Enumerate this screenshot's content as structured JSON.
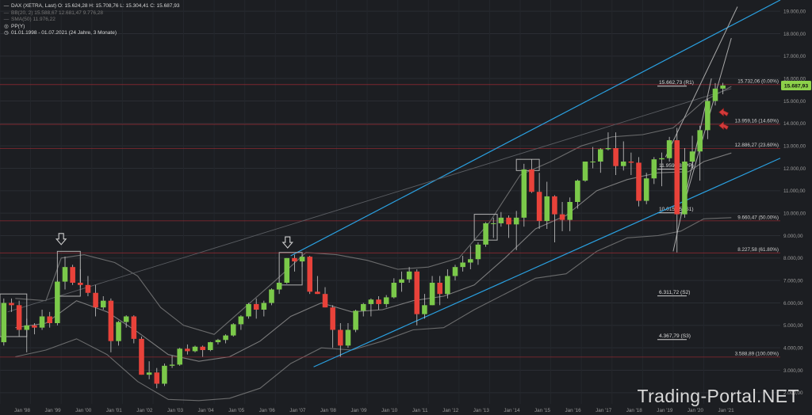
{
  "legend": {
    "ohlc": "DAX (XETRA, Last)  O: 15.624,28  H: 15.708,76  L: 15.304,41  C: 15.687,93",
    "bb": "BB(20, 2)  15.588,67  12.681,47  9.776,28",
    "sma": "SMA(50)  11.976,22",
    "pp": "PP(Y)",
    "range": "01.01.1998 - 01.07.2021  (24 Jahre, 3 Monate)"
  },
  "watermark": "Trading-Portal.NET",
  "colors": {
    "background": "#1c1e22",
    "up": "#7bc94a",
    "down": "#e8423a",
    "channel": "#2aa0e0",
    "bollinger": "#8c8c8c",
    "fib_line": "#9a2b33",
    "price_tag": "#8dd14a"
  },
  "chart_data": {
    "type": "candlestick",
    "title": "DAX (XETRA, Last)",
    "timeframe": "quarterly",
    "ylim": [
      1500,
      19500
    ],
    "ytick_values": [
      2000,
      3000,
      4000,
      5000,
      6000,
      7000,
      8000,
      9000,
      10000,
      11000,
      12000,
      13000,
      14000,
      15000,
      16000,
      17000,
      18000,
      19000
    ],
    "ytick_labels": [
      "2.000,00",
      "3.000,00",
      "4.000,00",
      "5.000,00",
      "6.000,00",
      "7.000,00",
      "8.000,00",
      "9.000,00",
      "10.000,00",
      "11.000,00",
      "12.000,00",
      "13.000,00",
      "14.000,00",
      "15.000,00",
      "16.000,00",
      "17.000,00",
      "18.000,00",
      "19.000,00"
    ],
    "xlim": [
      1998.0,
      2023.5
    ],
    "xtick_values": [
      1998,
      1999,
      2000,
      2001,
      2002,
      2003,
      2004,
      2005,
      2006,
      2007,
      2008,
      2009,
      2010,
      2011,
      2012,
      2013,
      2014,
      2015,
      2016,
      2017,
      2018,
      2019,
      2020,
      2021
    ],
    "xtick_labels": [
      "Jan '98",
      "Jan '99",
      "Jan '00",
      "Jan '01",
      "Jan '02",
      "Jan '03",
      "Jan '04",
      "Jan '05",
      "Jan '06",
      "Jan '07",
      "Jan '08",
      "Jan '09",
      "Jan '10",
      "Jan '11",
      "Jan '12",
      "Jan '13",
      "Jan '14",
      "Jan '15",
      "Jan '16",
      "Jan '17",
      "Jan '18",
      "Jan '19",
      "Jan '20",
      "Jan '21"
    ],
    "last_price": "15.687,93",
    "last_value": 15687.93,
    "candles": [
      {
        "t": 1998.125,
        "o": 4250,
        "h": 6200,
        "l": 4100,
        "c": 6000
      },
      {
        "t": 1998.375,
        "o": 6000,
        "h": 6200,
        "l": 5600,
        "c": 5900
      },
      {
        "t": 1998.625,
        "o": 5900,
        "h": 6100,
        "l": 4500,
        "c": 4800
      },
      {
        "t": 1998.875,
        "o": 4800,
        "h": 5300,
        "l": 3800,
        "c": 5000
      },
      {
        "t": 1999.125,
        "o": 5000,
        "h": 5100,
        "l": 4600,
        "c": 4900
      },
      {
        "t": 1999.375,
        "o": 4900,
        "h": 5700,
        "l": 4800,
        "c": 5400
      },
      {
        "t": 1999.625,
        "o": 5400,
        "h": 5600,
        "l": 4900,
        "c": 5100
      },
      {
        "t": 1999.875,
        "o": 5100,
        "h": 7000,
        "l": 5000,
        "c": 6950
      },
      {
        "t": 2000.125,
        "o": 6950,
        "h": 8065,
        "l": 6600,
        "c": 7600
      },
      {
        "t": 2000.375,
        "o": 7600,
        "h": 7700,
        "l": 6800,
        "c": 6900
      },
      {
        "t": 2000.625,
        "o": 6900,
        "h": 7500,
        "l": 6700,
        "c": 6800
      },
      {
        "t": 2000.875,
        "o": 6800,
        "h": 7200,
        "l": 6300,
        "c": 6450
      },
      {
        "t": 2001.125,
        "o": 6450,
        "h": 6800,
        "l": 5400,
        "c": 5800
      },
      {
        "t": 2001.375,
        "o": 5800,
        "h": 6300,
        "l": 5700,
        "c": 6100
      },
      {
        "t": 2001.625,
        "o": 6100,
        "h": 6200,
        "l": 3800,
        "c": 4300
      },
      {
        "t": 2001.875,
        "o": 4300,
        "h": 5200,
        "l": 4100,
        "c": 5150
      },
      {
        "t": 2002.125,
        "o": 5150,
        "h": 5450,
        "l": 4900,
        "c": 5400
      },
      {
        "t": 2002.375,
        "o": 5400,
        "h": 5450,
        "l": 4200,
        "c": 4400
      },
      {
        "t": 2002.625,
        "o": 4400,
        "h": 4500,
        "l": 2800,
        "c": 2800
      },
      {
        "t": 2002.875,
        "o": 2800,
        "h": 3400,
        "l": 2600,
        "c": 2900
      },
      {
        "t": 2003.125,
        "o": 2900,
        "h": 3100,
        "l": 2200,
        "c": 2400
      },
      {
        "t": 2003.375,
        "o": 2400,
        "h": 3300,
        "l": 2300,
        "c": 3200
      },
      {
        "t": 2003.625,
        "o": 3200,
        "h": 3650,
        "l": 3100,
        "c": 3250
      },
      {
        "t": 2003.875,
        "o": 3250,
        "h": 4000,
        "l": 3200,
        "c": 3960
      },
      {
        "t": 2004.125,
        "o": 3960,
        "h": 4150,
        "l": 3700,
        "c": 3850
      },
      {
        "t": 2004.375,
        "o": 3850,
        "h": 4100,
        "l": 3800,
        "c": 4050
      },
      {
        "t": 2004.625,
        "o": 4050,
        "h": 4100,
        "l": 3600,
        "c": 3900
      },
      {
        "t": 2004.875,
        "o": 3900,
        "h": 4270,
        "l": 3850,
        "c": 4250
      },
      {
        "t": 2005.125,
        "o": 4250,
        "h": 4400,
        "l": 4150,
        "c": 4350
      },
      {
        "t": 2005.375,
        "o": 4350,
        "h": 4600,
        "l": 4200,
        "c": 4550
      },
      {
        "t": 2005.625,
        "o": 4550,
        "h": 5100,
        "l": 4500,
        "c": 5050
      },
      {
        "t": 2005.875,
        "o": 5050,
        "h": 5450,
        "l": 4800,
        "c": 5400
      },
      {
        "t": 2006.125,
        "o": 5400,
        "h": 6000,
        "l": 5300,
        "c": 5950
      },
      {
        "t": 2006.375,
        "o": 5950,
        "h": 6200,
        "l": 5300,
        "c": 5700
      },
      {
        "t": 2006.625,
        "o": 5700,
        "h": 6100,
        "l": 5400,
        "c": 6000
      },
      {
        "t": 2006.875,
        "o": 6000,
        "h": 6650,
        "l": 5900,
        "c": 6600
      },
      {
        "t": 2007.125,
        "o": 6600,
        "h": 6950,
        "l": 6400,
        "c": 6900
      },
      {
        "t": 2007.375,
        "o": 6900,
        "h": 8000,
        "l": 6850,
        "c": 8000
      },
      {
        "t": 2007.625,
        "o": 8000,
        "h": 8150,
        "l": 7400,
        "c": 7850
      },
      {
        "t": 2007.875,
        "o": 7850,
        "h": 8150,
        "l": 7600,
        "c": 8060
      },
      {
        "t": 2008.125,
        "o": 8060,
        "h": 8100,
        "l": 6400,
        "c": 6500
      },
      {
        "t": 2008.375,
        "o": 6500,
        "h": 7200,
        "l": 6400,
        "c": 6400
      },
      {
        "t": 2008.625,
        "o": 6400,
        "h": 6700,
        "l": 5800,
        "c": 5800
      },
      {
        "t": 2008.875,
        "o": 5800,
        "h": 5900,
        "l": 4000,
        "c": 4800
      },
      {
        "t": 2009.125,
        "o": 4800,
        "h": 5100,
        "l": 3600,
        "c": 4100
      },
      {
        "t": 2009.375,
        "o": 4100,
        "h": 5100,
        "l": 4000,
        "c": 4800
      },
      {
        "t": 2009.625,
        "o": 4800,
        "h": 5700,
        "l": 4700,
        "c": 5650
      },
      {
        "t": 2009.875,
        "o": 5650,
        "h": 6000,
        "l": 5400,
        "c": 5950
      },
      {
        "t": 2010.125,
        "o": 5950,
        "h": 6200,
        "l": 5400,
        "c": 6150
      },
      {
        "t": 2010.375,
        "o": 6150,
        "h": 6300,
        "l": 5700,
        "c": 5950
      },
      {
        "t": 2010.625,
        "o": 5950,
        "h": 6350,
        "l": 5800,
        "c": 6250
      },
      {
        "t": 2010.875,
        "o": 6250,
        "h": 7100,
        "l": 6200,
        "c": 6900
      },
      {
        "t": 2011.125,
        "o": 6900,
        "h": 7400,
        "l": 6500,
        "c": 7050
      },
      {
        "t": 2011.375,
        "o": 7050,
        "h": 7600,
        "l": 6900,
        "c": 7400
      },
      {
        "t": 2011.625,
        "o": 7400,
        "h": 7500,
        "l": 5000,
        "c": 5500
      },
      {
        "t": 2011.875,
        "o": 5500,
        "h": 6400,
        "l": 5300,
        "c": 5900
      },
      {
        "t": 2012.125,
        "o": 5900,
        "h": 7200,
        "l": 5900,
        "c": 6900
      },
      {
        "t": 2012.375,
        "o": 6900,
        "h": 7200,
        "l": 5900,
        "c": 6400
      },
      {
        "t": 2012.625,
        "o": 6400,
        "h": 7500,
        "l": 6200,
        "c": 7200
      },
      {
        "t": 2012.875,
        "o": 7200,
        "h": 7700,
        "l": 7000,
        "c": 7600
      },
      {
        "t": 2013.125,
        "o": 7600,
        "h": 8100,
        "l": 7400,
        "c": 7800
      },
      {
        "t": 2013.375,
        "o": 7800,
        "h": 8550,
        "l": 7500,
        "c": 7950
      },
      {
        "t": 2013.625,
        "o": 7950,
        "h": 8700,
        "l": 7700,
        "c": 8600
      },
      {
        "t": 2013.875,
        "o": 8600,
        "h": 9600,
        "l": 8500,
        "c": 9550
      },
      {
        "t": 2014.125,
        "o": 9550,
        "h": 9800,
        "l": 8900,
        "c": 9550
      },
      {
        "t": 2014.375,
        "o": 9550,
        "h": 10050,
        "l": 9400,
        "c": 9800
      },
      {
        "t": 2014.625,
        "o": 9800,
        "h": 9900,
        "l": 8900,
        "c": 9500
      },
      {
        "t": 2014.875,
        "o": 9500,
        "h": 10100,
        "l": 8350,
        "c": 9800
      },
      {
        "t": 2015.125,
        "o": 9800,
        "h": 12200,
        "l": 9400,
        "c": 11950
      },
      {
        "t": 2015.375,
        "o": 11950,
        "h": 12400,
        "l": 10900,
        "c": 10950
      },
      {
        "t": 2015.625,
        "o": 10950,
        "h": 11800,
        "l": 9300,
        "c": 9650
      },
      {
        "t": 2015.875,
        "o": 9650,
        "h": 11400,
        "l": 9300,
        "c": 10750
      },
      {
        "t": 2016.125,
        "o": 10750,
        "h": 10800,
        "l": 8700,
        "c": 9950
      },
      {
        "t": 2016.375,
        "o": 9950,
        "h": 10500,
        "l": 9200,
        "c": 9700
      },
      {
        "t": 2016.625,
        "o": 9700,
        "h": 10700,
        "l": 9200,
        "c": 10500
      },
      {
        "t": 2016.875,
        "o": 10500,
        "h": 11500,
        "l": 10200,
        "c": 11450
      },
      {
        "t": 2017.125,
        "o": 11450,
        "h": 12300,
        "l": 11400,
        "c": 12300
      },
      {
        "t": 2017.375,
        "o": 12300,
        "h": 12950,
        "l": 12000,
        "c": 12300
      },
      {
        "t": 2017.625,
        "o": 12300,
        "h": 12900,
        "l": 11800,
        "c": 12850
      },
      {
        "t": 2017.875,
        "o": 12850,
        "h": 13600,
        "l": 12800,
        "c": 12900
      },
      {
        "t": 2018.125,
        "o": 12900,
        "h": 13600,
        "l": 11700,
        "c": 12100
      },
      {
        "t": 2018.375,
        "o": 12100,
        "h": 13200,
        "l": 11900,
        "c": 12300
      },
      {
        "t": 2018.625,
        "o": 12300,
        "h": 12700,
        "l": 11700,
        "c": 12250
      },
      {
        "t": 2018.875,
        "o": 12250,
        "h": 12500,
        "l": 10300,
        "c": 10550
      },
      {
        "t": 2019.125,
        "o": 10550,
        "h": 11800,
        "l": 10400,
        "c": 11550
      },
      {
        "t": 2019.375,
        "o": 11550,
        "h": 12500,
        "l": 11300,
        "c": 12400
      },
      {
        "t": 2019.625,
        "o": 12400,
        "h": 12700,
        "l": 11200,
        "c": 12450
      },
      {
        "t": 2019.875,
        "o": 12450,
        "h": 13400,
        "l": 12300,
        "c": 13250
      },
      {
        "t": 2020.125,
        "o": 13250,
        "h": 13800,
        "l": 8250,
        "c": 9950
      },
      {
        "t": 2020.375,
        "o": 9950,
        "h": 12900,
        "l": 9800,
        "c": 12300
      },
      {
        "t": 2020.625,
        "o": 12300,
        "h": 13450,
        "l": 12000,
        "c": 12750
      },
      {
        "t": 2020.875,
        "o": 12750,
        "h": 13900,
        "l": 11450,
        "c": 13700
      },
      {
        "t": 2021.125,
        "o": 13700,
        "h": 15100,
        "l": 13300,
        "c": 15000
      },
      {
        "t": 2021.375,
        "o": 15000,
        "h": 15800,
        "l": 14800,
        "c": 15550
      },
      {
        "t": 2021.625,
        "o": 15550,
        "h": 15810,
        "l": 15300,
        "c": 15690
      }
    ],
    "levels": [
      {
        "value": 15732.06,
        "label": "15.732,06 (0.00%)",
        "kind": "fib"
      },
      {
        "value": 15662.73,
        "label": "15.662,73 (R1)",
        "kind": "pivot"
      },
      {
        "value": 13959.16,
        "label": "13.959,16 (14.60%)",
        "kind": "fib"
      },
      {
        "value": 12886.27,
        "label": "12.886,27 (23.60%)",
        "kind": "fib"
      },
      {
        "value": 11959.18,
        "label": "11.959,18 (PP)",
        "kind": "pivot"
      },
      {
        "value": 10015.25,
        "label": "10.015,25 (S1)",
        "kind": "pivot"
      },
      {
        "value": 9660.47,
        "label": "9.660,47 (50.00%)",
        "kind": "fib"
      },
      {
        "value": 8227.58,
        "label": "8.227,58 (61.80%)",
        "kind": "fib"
      },
      {
        "value": 6311.72,
        "label": "6.311,72 (S2)",
        "kind": "pivot"
      },
      {
        "value": 4367.79,
        "label": "4.367,79 (S3)",
        "kind": "pivot"
      },
      {
        "value": 3588.89,
        "label": "3.588,89 (100.00%)",
        "kind": "fib"
      }
    ],
    "channel_lines": [
      {
        "x1": 2007.5,
        "y1": 8100,
        "x2": 2023.5,
        "y2": 19500
      },
      {
        "x1": 2008.25,
        "y1": 3150,
        "x2": 2023.5,
        "y2": 12450
      }
    ],
    "diagonal_lines": [
      {
        "x1": 1998.25,
        "y1": 5600,
        "x2": 2021.9,
        "y2": 15550,
        "dim": true
      },
      {
        "x1": 2020.0,
        "y1": 8300,
        "x2": 2021.25,
        "y2": 16000,
        "dim": false
      },
      {
        "x1": 2020.25,
        "y1": 9900,
        "x2": 2021.9,
        "y2": 17800,
        "dim": false
      },
      {
        "x1": 2019.75,
        "y1": 12500,
        "x2": 2022.1,
        "y2": 19200,
        "dim": false
      }
    ],
    "boxes": [
      {
        "x1": 1998.0,
        "x2": 1998.875,
        "y1": 4500,
        "y2": 6400
      },
      {
        "x1": 1999.875,
        "x2": 2000.625,
        "y1": 6300,
        "y2": 8300
      },
      {
        "x1": 2007.125,
        "x2": 2007.875,
        "y1": 6800,
        "y2": 8250
      },
      {
        "x1": 2013.5,
        "x2": 2014.25,
        "y1": 8800,
        "y2": 9950
      },
      {
        "x1": 2014.875,
        "x2": 2015.625,
        "y1": 11900,
        "y2": 12400
      }
    ],
    "markers": [
      {
        "x": 2000.0,
        "y": 8600,
        "type": "down-arrow"
      },
      {
        "x": 2007.4,
        "y": 8450,
        "type": "down-arrow"
      },
      {
        "x": 2021.65,
        "y": 14500,
        "type": "left-arrow"
      },
      {
        "x": 2021.65,
        "y": 13900,
        "type": "left-arrow"
      }
    ],
    "bollinger_upper": [
      [
        1998.5,
        6200
      ],
      [
        1999.5,
        6100
      ],
      [
        2000.0,
        8000
      ],
      [
        2000.75,
        8150
      ],
      [
        2001.75,
        7800
      ],
      [
        2002.5,
        7200
      ],
      [
        2003.25,
        5800
      ],
      [
        2004.0,
        5000
      ],
      [
        2005.0,
        4600
      ],
      [
        2006.0,
        5800
      ],
      [
        2007.0,
        7000
      ],
      [
        2008.0,
        8250
      ],
      [
        2009.0,
        8150
      ],
      [
        2010.0,
        7900
      ],
      [
        2011.0,
        7500
      ],
      [
        2012.0,
        7600
      ],
      [
        2013.0,
        8000
      ],
      [
        2014.0,
        9600
      ],
      [
        2015.0,
        11700
      ],
      [
        2016.0,
        12300
      ],
      [
        2017.0,
        13000
      ],
      [
        2018.0,
        13400
      ],
      [
        2019.0,
        13500
      ],
      [
        2020.0,
        13800
      ],
      [
        2021.0,
        15000
      ],
      [
        2021.9,
        15650
      ]
    ],
    "bollinger_lower": [
      [
        1998.5,
        3600
      ],
      [
        1999.5,
        3900
      ],
      [
        2000.5,
        4400
      ],
      [
        2001.5,
        3700
      ],
      [
        2002.5,
        2500
      ],
      [
        2003.5,
        1700
      ],
      [
        2004.5,
        1650
      ],
      [
        2005.5,
        1750
      ],
      [
        2006.5,
        2200
      ],
      [
        2007.5,
        3300
      ],
      [
        2008.5,
        4000
      ],
      [
        2009.5,
        3900
      ],
      [
        2010.5,
        4300
      ],
      [
        2011.5,
        4800
      ],
      [
        2012.5,
        4900
      ],
      [
        2013.5,
        5700
      ],
      [
        2014.5,
        6400
      ],
      [
        2015.5,
        7100
      ],
      [
        2016.5,
        7300
      ],
      [
        2017.5,
        8300
      ],
      [
        2018.5,
        8900
      ],
      [
        2019.5,
        9000
      ],
      [
        2020.25,
        9200
      ],
      [
        2021.0,
        9750
      ],
      [
        2021.9,
        9800
      ]
    ],
    "bollinger_mid": [
      [
        1998.5,
        4900
      ],
      [
        1999.5,
        5100
      ],
      [
        2000.5,
        6100
      ],
      [
        2001.5,
        5600
      ],
      [
        2002.5,
        4700
      ],
      [
        2003.5,
        3700
      ],
      [
        2004.5,
        3400
      ],
      [
        2005.5,
        3600
      ],
      [
        2006.5,
        4300
      ],
      [
        2007.5,
        5400
      ],
      [
        2008.5,
        6000
      ],
      [
        2009.5,
        5600
      ],
      [
        2010.5,
        5700
      ],
      [
        2011.5,
        6100
      ],
      [
        2012.5,
        6300
      ],
      [
        2013.5,
        6800
      ],
      [
        2014.5,
        8000
      ],
      [
        2015.5,
        9300
      ],
      [
        2016.5,
        9900
      ],
      [
        2017.5,
        11000
      ],
      [
        2018.5,
        11500
      ],
      [
        2019.5,
        11800
      ],
      [
        2020.5,
        11850
      ],
      [
        2021.0,
        12300
      ],
      [
        2021.9,
        12680
      ]
    ]
  }
}
